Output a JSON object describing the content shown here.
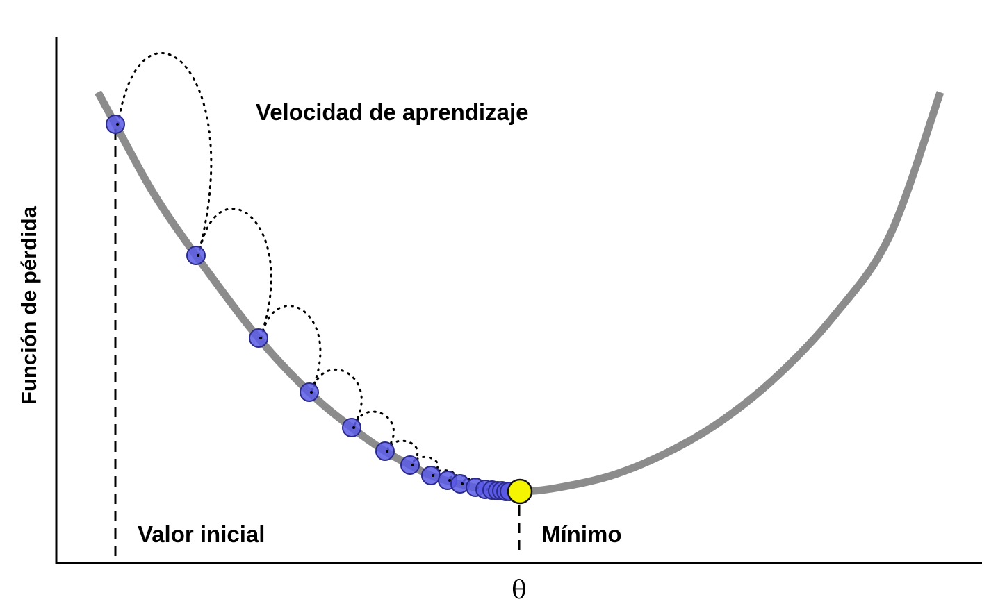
{
  "labels": {
    "learning_rate": "Velocidad de aprendizaje",
    "y_axis": "Función de pérdida",
    "x_axis": "θ",
    "initial_value": "Valor inicial",
    "minimum": "Mínimo"
  },
  "colors": {
    "curve": "#8c8c8c",
    "step_point_fill": "#5a5ae6",
    "step_point_stroke": "#2a2a8a",
    "minimum_point_fill": "#f5f500",
    "axes": "#000000"
  }
}
